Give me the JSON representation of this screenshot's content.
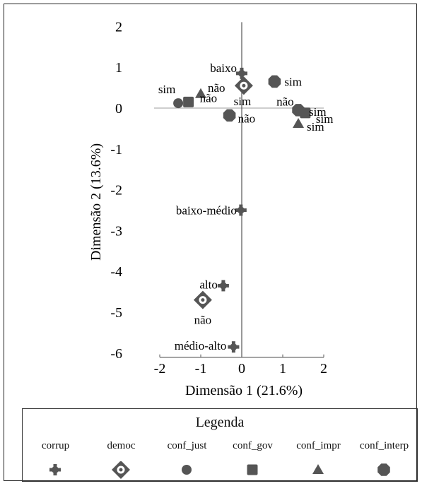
{
  "chart_data": {
    "type": "scatter",
    "title": "",
    "xlabel": "Dimensão 1 (21.6%)",
    "ylabel": "Dimensão 2 (13.6%)",
    "xlim": [
      -2,
      2
    ],
    "ylim": [
      -6,
      2
    ],
    "x_ticks": [
      "-2",
      "-1",
      "0",
      "1",
      "2"
    ],
    "y_ticks": [
      "2",
      "1",
      "0",
      "-1",
      "-2",
      "-3",
      "-4",
      "-5",
      "-6"
    ],
    "grid": false,
    "legend_placement": "bottom",
    "marker_color": "#555555",
    "series": [
      {
        "name": "corrup",
        "marker": "plus-circle",
        "points": [
          {
            "label": "baixo",
            "x": 0.0,
            "y": 0.85
          },
          {
            "label": "baixo-médio",
            "x": -0.02,
            "y": -2.5
          },
          {
            "label": "alto",
            "x": -0.45,
            "y": -4.35
          },
          {
            "label": "médio-alto",
            "x": -0.2,
            "y": -5.85
          }
        ]
      },
      {
        "name": "democ",
        "marker": "diamond-ring",
        "points": [
          {
            "label": "sim",
            "x": 0.05,
            "y": 0.55
          },
          {
            "label": "não",
            "x": -0.95,
            "y": -4.7
          }
        ]
      },
      {
        "name": "conf_just",
        "marker": "circle",
        "points": [
          {
            "label": "sim",
            "x": -1.55,
            "y": 0.12
          },
          {
            "label": "não",
            "x": 0.8,
            "y": 0.68
          }
        ]
      },
      {
        "name": "conf_gov",
        "marker": "square",
        "points": [
          {
            "label": "não",
            "x": -1.3,
            "y": 0.15
          },
          {
            "label": "sim",
            "x": 1.55,
            "y": -0.12
          }
        ]
      },
      {
        "name": "conf_impr",
        "marker": "triangle",
        "points": [
          {
            "label": "não",
            "x": -1.0,
            "y": 0.35
          },
          {
            "label": "sim",
            "x": 1.38,
            "y": -0.38
          }
        ]
      },
      {
        "name": "conf_interp",
        "marker": "octagon",
        "points": [
          {
            "label": "sim",
            "x": 0.8,
            "y": 0.65
          },
          {
            "label": "não",
            "x": -0.3,
            "y": -0.18
          },
          {
            "label": "sim",
            "x": 1.38,
            "y": -0.05
          }
        ]
      }
    ]
  },
  "legend": {
    "title": "Legenda",
    "items": [
      "corrup",
      "democ",
      "conf_just",
      "conf_gov",
      "conf_impr",
      "conf_interp"
    ]
  }
}
